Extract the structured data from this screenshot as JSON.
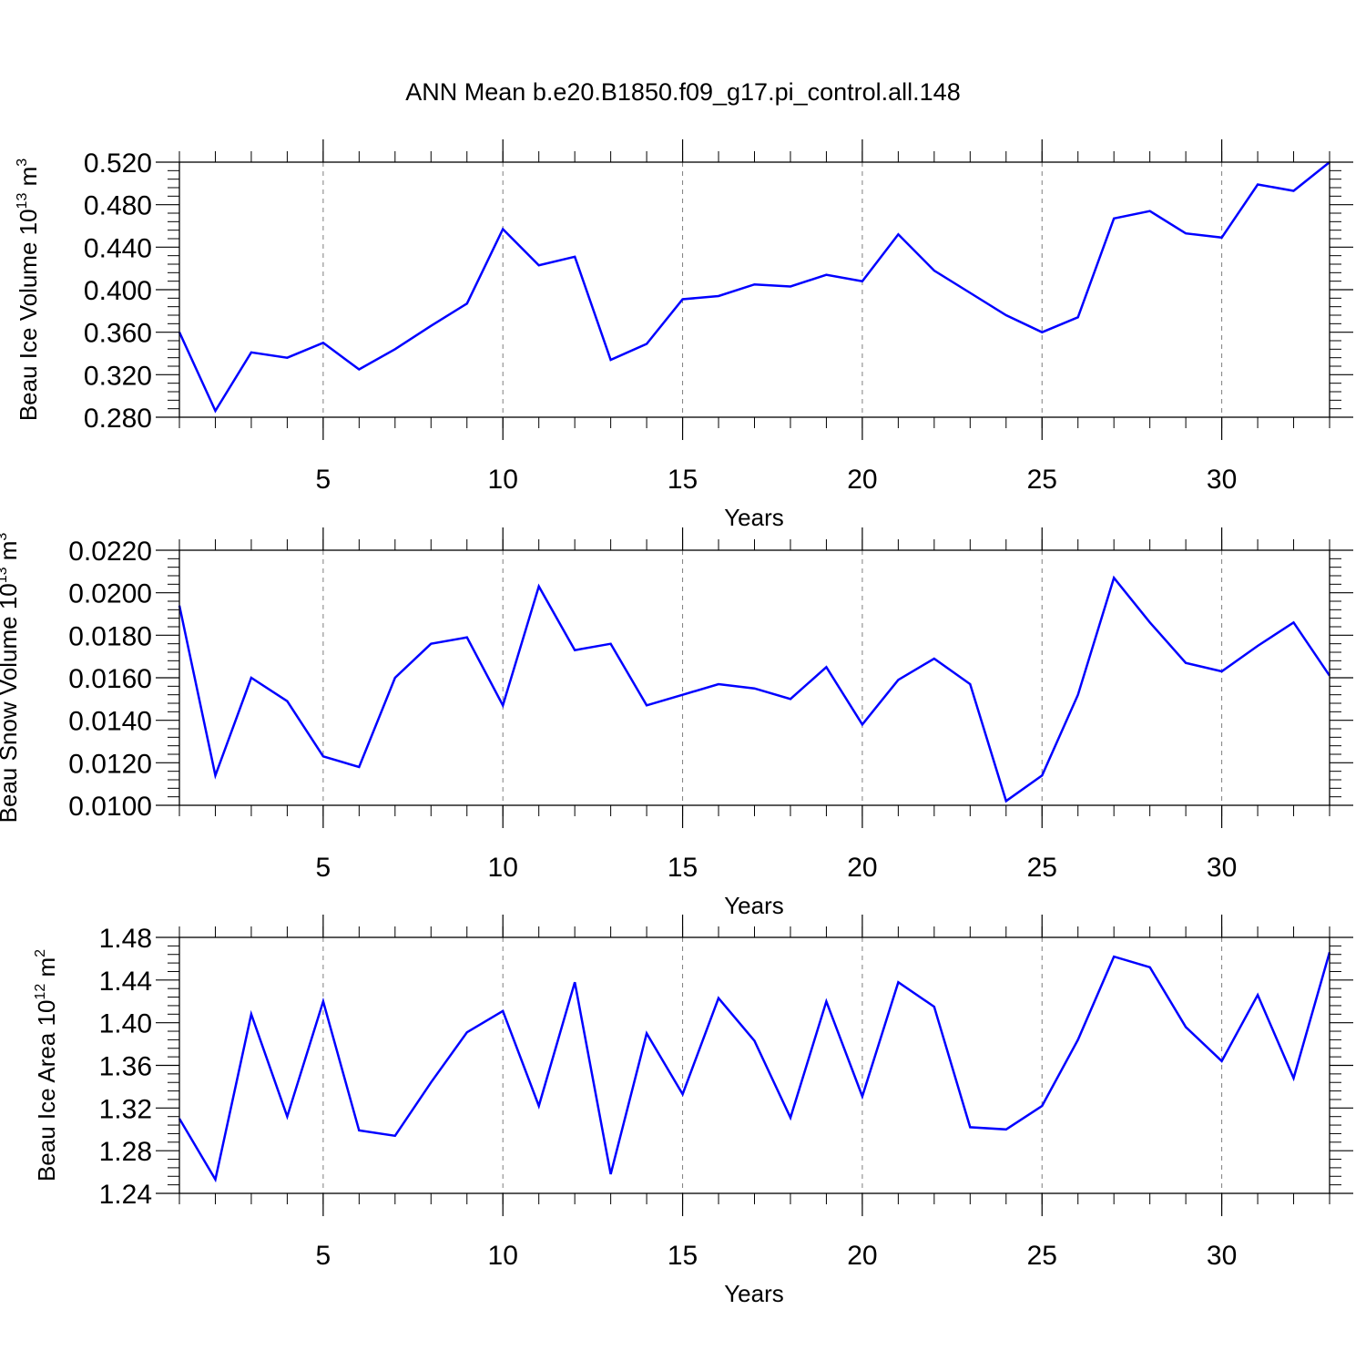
{
  "title": "ANN Mean b.e20.B1850.f09_g17.pi_control.all.148",
  "colors": {
    "series": "#0000ff",
    "axes": "#000000",
    "grid": "#7f7f7f"
  },
  "chart_data": [
    {
      "type": "line",
      "ylabel": {
        "main": "Beau Ice Volume 10",
        "sup": "13",
        "unit": " m",
        "unit_sup": "3"
      },
      "xlabel": "Years",
      "xlim": [
        1,
        33
      ],
      "xticks": [
        5,
        10,
        15,
        20,
        25,
        30
      ],
      "ylim": [
        0.28,
        0.52
      ],
      "yticks": [
        "0.280",
        "0.320",
        "0.360",
        "0.400",
        "0.440",
        "0.480",
        "0.520"
      ],
      "grid": "x-dashed",
      "x": [
        1,
        2,
        3,
        4,
        5,
        6,
        7,
        8,
        9,
        10,
        11,
        12,
        13,
        14,
        15,
        16,
        17,
        18,
        19,
        20,
        21,
        22,
        23,
        24,
        25,
        26,
        27,
        28,
        29,
        30,
        31,
        32,
        33
      ],
      "values": [
        0.36,
        0.286,
        0.341,
        0.336,
        0.35,
        0.325,
        0.344,
        0.366,
        0.387,
        0.457,
        0.423,
        0.431,
        0.334,
        0.349,
        0.391,
        0.394,
        0.405,
        0.403,
        0.414,
        0.408,
        0.452,
        0.418,
        0.397,
        0.376,
        0.36,
        0.374,
        0.467,
        0.474,
        0.453,
        0.449,
        0.499,
        0.493,
        0.52
      ]
    },
    {
      "type": "line",
      "ylabel": {
        "main": "Beau Snow Volume 10",
        "sup": "13",
        "unit": " m",
        "unit_sup": "3"
      },
      "xlabel": "Years",
      "xlim": [
        1,
        33
      ],
      "xticks": [
        5,
        10,
        15,
        20,
        25,
        30
      ],
      "ylim": [
        0.01,
        0.022
      ],
      "yticks": [
        "0.0100",
        "0.0120",
        "0.0140",
        "0.0160",
        "0.0180",
        "0.0200",
        "0.0220"
      ],
      "grid": "x-dashed",
      "x": [
        1,
        2,
        3,
        4,
        5,
        6,
        7,
        8,
        9,
        10,
        11,
        12,
        13,
        14,
        15,
        16,
        17,
        18,
        19,
        20,
        21,
        22,
        23,
        24,
        25,
        26,
        27,
        28,
        29,
        30,
        31,
        32,
        33
      ],
      "values": [
        0.0194,
        0.0114,
        0.016,
        0.0149,
        0.0123,
        0.0118,
        0.016,
        0.0176,
        0.0179,
        0.0147,
        0.0203,
        0.0173,
        0.0176,
        0.0147,
        0.0152,
        0.0157,
        0.0155,
        0.015,
        0.0165,
        0.0138,
        0.0159,
        0.0169,
        0.0157,
        0.0102,
        0.0114,
        0.0152,
        0.0207,
        0.0186,
        0.0167,
        0.0163,
        0.0175,
        0.0186,
        0.0161
      ]
    },
    {
      "type": "line",
      "ylabel": {
        "main": "Beau Ice Area 10",
        "sup": "12",
        "unit": " m",
        "unit_sup": "2"
      },
      "xlabel": "Years",
      "xlim": [
        1,
        33
      ],
      "xticks": [
        5,
        10,
        15,
        20,
        25,
        30
      ],
      "ylim": [
        1.24,
        1.48
      ],
      "yticks": [
        "1.24",
        "1.28",
        "1.32",
        "1.36",
        "1.40",
        "1.44",
        "1.48"
      ],
      "grid": "x-dashed",
      "x": [
        1,
        2,
        3,
        4,
        5,
        6,
        7,
        8,
        9,
        10,
        11,
        12,
        13,
        14,
        15,
        16,
        17,
        18,
        19,
        20,
        21,
        22,
        23,
        24,
        25,
        26,
        27,
        28,
        29,
        30,
        31,
        32,
        33
      ],
      "values": [
        1.31,
        1.253,
        1.408,
        1.312,
        1.42,
        1.299,
        1.294,
        1.344,
        1.391,
        1.411,
        1.322,
        1.438,
        1.258,
        1.39,
        1.333,
        1.423,
        1.383,
        1.311,
        1.42,
        1.331,
        1.438,
        1.415,
        1.302,
        1.3,
        1.322,
        1.384,
        1.462,
        1.452,
        1.396,
        1.364,
        1.426,
        1.348,
        1.466
      ]
    }
  ]
}
